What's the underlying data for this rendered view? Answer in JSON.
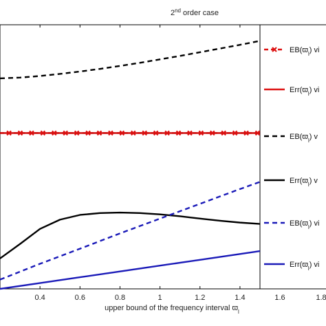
{
  "chart_data": {
    "type": "line",
    "title_main": "2",
    "title_sup": "nd",
    "title_rest": " order case",
    "xlabel_main": "upper bound of the frequency interval ϖ",
    "xlabel_sub": "l",
    "xlim": [
      0.2,
      1.5
    ],
    "ylim": [
      0,
      1
    ],
    "xticks": [
      "0.4",
      "0.6",
      "0.8",
      "1",
      "1.2",
      "1.4"
    ],
    "legend_ticks": [
      "1.6",
      "1.8"
    ],
    "series": [
      {
        "key": "s1",
        "color": "#000000",
        "dash": "dashed",
        "x": [
          0.2,
          0.3,
          0.4,
          0.5,
          0.6,
          0.7,
          0.8,
          0.9,
          1.0,
          1.1,
          1.2,
          1.3,
          1.4,
          1.5
        ],
        "y": [
          0.797,
          0.8,
          0.806,
          0.814,
          0.823,
          0.833,
          0.844,
          0.856,
          0.869,
          0.882,
          0.896,
          0.91,
          0.924,
          0.939
        ]
      },
      {
        "key": "s2",
        "color": "#dd1111",
        "dash": "dashdot-marker",
        "x": [
          0.2,
          0.3,
          0.4,
          0.5,
          0.6,
          0.7,
          0.8,
          0.9,
          1.0,
          1.1,
          1.2,
          1.3,
          1.4,
          1.5
        ],
        "y": [
          0.59,
          0.59,
          0.59,
          0.59,
          0.59,
          0.59,
          0.59,
          0.59,
          0.59,
          0.59,
          0.59,
          0.59,
          0.59,
          0.59
        ]
      },
      {
        "key": "s3",
        "color": "#cc0000",
        "dash": "solid",
        "x": [
          0.2,
          1.5
        ],
        "y": [
          0.59,
          0.59
        ]
      },
      {
        "key": "s4",
        "color": "#000000",
        "dash": "solid",
        "x": [
          0.2,
          0.3,
          0.4,
          0.5,
          0.6,
          0.7,
          0.8,
          0.9,
          1.0,
          1.1,
          1.2,
          1.3,
          1.4,
          1.5
        ],
        "y": [
          0.115,
          0.17,
          0.227,
          0.262,
          0.28,
          0.287,
          0.289,
          0.287,
          0.282,
          0.275,
          0.266,
          0.258,
          0.251,
          0.246
        ]
      },
      {
        "key": "s5",
        "color": "#1a1ab8",
        "dash": "dashed",
        "x": [
          0.2,
          0.4,
          0.6,
          0.8,
          1.0,
          1.2,
          1.4,
          1.5
        ],
        "y": [
          0.035,
          0.095,
          0.152,
          0.21,
          0.266,
          0.322,
          0.378,
          0.405
        ]
      },
      {
        "key": "s6",
        "color": "#1a1ab8",
        "dash": "solid",
        "x": [
          0.2,
          0.4,
          0.6,
          0.8,
          1.0,
          1.2,
          1.4,
          1.5
        ],
        "y": [
          0.0,
          0.022,
          0.044,
          0.066,
          0.088,
          0.11,
          0.132,
          0.143
        ]
      }
    ],
    "legend": [
      {
        "name_main": "EB(ϖ",
        "name_sub": "l",
        "name_rest": ") vi",
        "color": "#dd1111",
        "dash": "dashdot-marker"
      },
      {
        "name_main": "Err(ϖ",
        "name_sub": "l",
        "name_rest": ") vi",
        "color": "#dd1111",
        "dash": "solid"
      },
      {
        "name_main": "EB(ϖ",
        "name_sub": "l",
        "name_rest": ")  v",
        "color": "#000000",
        "dash": "dashed"
      },
      {
        "name_main": "Err(ϖ",
        "name_sub": "l",
        "name_rest": ")  v",
        "color": "#000000",
        "dash": "solid"
      },
      {
        "name_main": "EB(ϖ",
        "name_sub": "l",
        "name_rest": ") vi",
        "color": "#1a1ab8",
        "dash": "dashed"
      },
      {
        "name_main": "Err(ϖ",
        "name_sub": "l",
        "name_rest": ") vi",
        "color": "#1a1ab8",
        "dash": "solid"
      }
    ]
  }
}
